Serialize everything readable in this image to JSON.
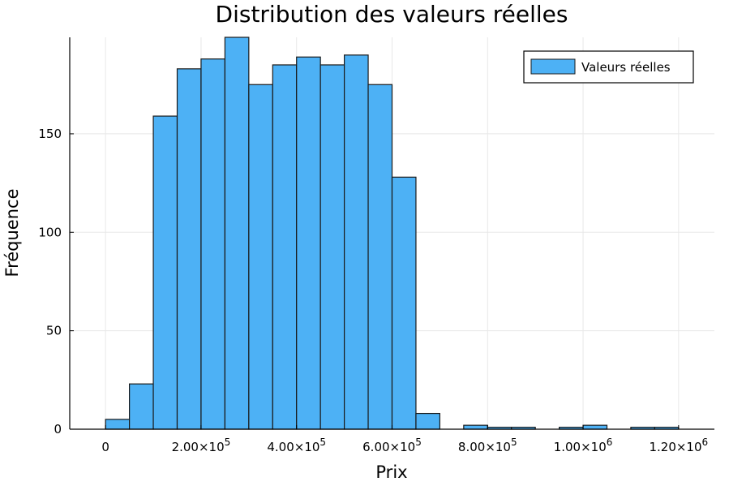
{
  "chart_data": {
    "type": "bar",
    "title": "Distribution des valeurs réelles",
    "xlabel": "Prix",
    "ylabel": "Fréquence",
    "bin_width": 50000,
    "xlim": [
      -75000,
      1275000
    ],
    "ylim": [
      0,
      199
    ],
    "x_ticks": [
      {
        "value": 0,
        "mantissa": "0",
        "exp": ""
      },
      {
        "value": 200000,
        "mantissa": "2.00×10",
        "exp": "5"
      },
      {
        "value": 400000,
        "mantissa": "4.00×10",
        "exp": "5"
      },
      {
        "value": 600000,
        "mantissa": "6.00×10",
        "exp": "5"
      },
      {
        "value": 800000,
        "mantissa": "8.00×10",
        "exp": "5"
      },
      {
        "value": 1000000,
        "mantissa": "1.00×10",
        "exp": "6"
      },
      {
        "value": 1200000,
        "mantissa": "1.20×10",
        "exp": "6"
      }
    ],
    "y_ticks": [
      {
        "value": 0,
        "label": "0"
      },
      {
        "value": 50,
        "label": "50"
      },
      {
        "value": 100,
        "label": "100"
      },
      {
        "value": 150,
        "label": "150"
      }
    ],
    "bins": [
      {
        "start": 0,
        "value": 5
      },
      {
        "start": 50000,
        "value": 23
      },
      {
        "start": 100000,
        "value": 159
      },
      {
        "start": 150000,
        "value": 183
      },
      {
        "start": 200000,
        "value": 188
      },
      {
        "start": 250000,
        "value": 199
      },
      {
        "start": 300000,
        "value": 175
      },
      {
        "start": 350000,
        "value": 185
      },
      {
        "start": 400000,
        "value": 189
      },
      {
        "start": 450000,
        "value": 185
      },
      {
        "start": 500000,
        "value": 190
      },
      {
        "start": 550000,
        "value": 175
      },
      {
        "start": 600000,
        "value": 128
      },
      {
        "start": 650000,
        "value": 8
      },
      {
        "start": 700000,
        "value": 0
      },
      {
        "start": 750000,
        "value": 2
      },
      {
        "start": 800000,
        "value": 1
      },
      {
        "start": 850000,
        "value": 1
      },
      {
        "start": 900000,
        "value": 0
      },
      {
        "start": 950000,
        "value": 1
      },
      {
        "start": 1000000,
        "value": 2
      },
      {
        "start": 1050000,
        "value": 0
      },
      {
        "start": 1100000,
        "value": 1
      },
      {
        "start": 1150000,
        "value": 1
      }
    ],
    "series": [
      {
        "name": "Valeurs réelles",
        "color": "#4db1f5"
      }
    ],
    "grid": true,
    "legend_position": "top-right",
    "colors": {
      "bar_fill": "#4db1f5",
      "bar_stroke": "#1a1a1a",
      "grid": "#e8e8e8"
    }
  }
}
